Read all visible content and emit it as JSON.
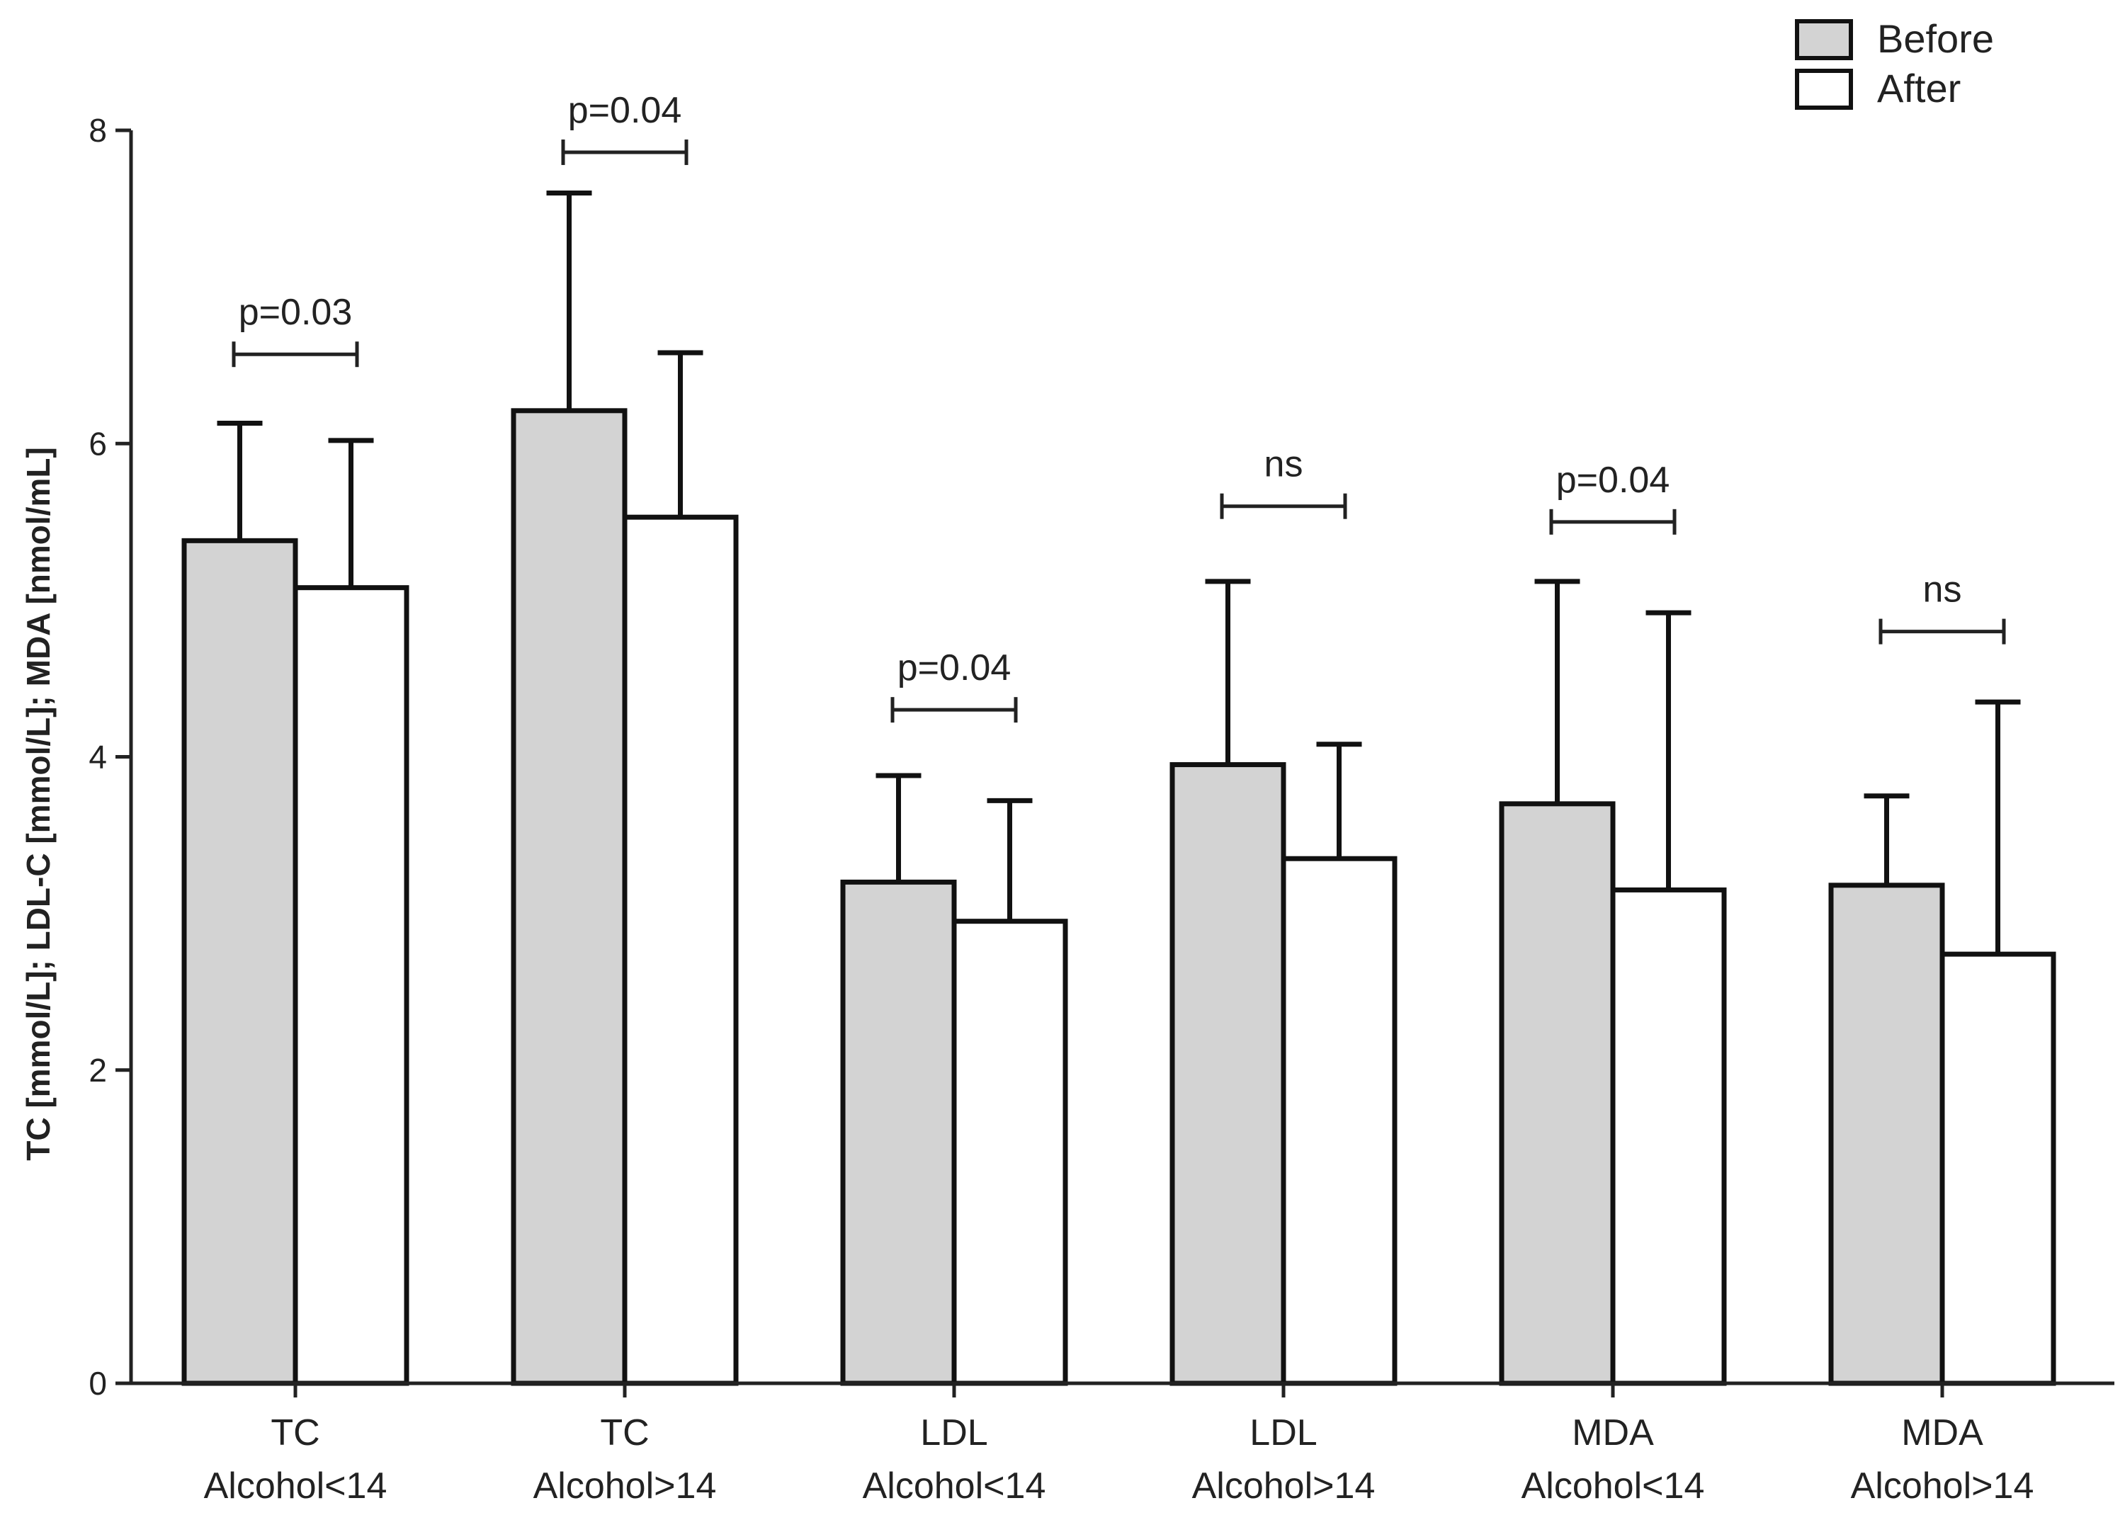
{
  "chart_data": {
    "type": "bar",
    "title": "",
    "xlabel": "",
    "ylabel": "TC [mmol/L]; LDL-C [mmol/L]; MDA [nmol/mL]",
    "ylim": [
      0,
      8
    ],
    "yticks": [
      0,
      2,
      4,
      6,
      8
    ],
    "grid": false,
    "legend_position": "top-right",
    "categories": [
      {
        "line1": "TC",
        "line2": "Alcohol<14"
      },
      {
        "line1": "TC",
        "line2": "Alcohol>14"
      },
      {
        "line1": "LDL",
        "line2": "Alcohol<14"
      },
      {
        "line1": "LDL",
        "line2": "Alcohol>14"
      },
      {
        "line1": "MDA",
        "line2": "Alcohol<14"
      },
      {
        "line1": "MDA",
        "line2": "Alcohol>14"
      }
    ],
    "series": [
      {
        "name": "Before",
        "color": "#d3d3d3",
        "values": [
          5.38,
          6.21,
          3.2,
          3.95,
          3.7,
          3.18
        ],
        "error_upper": [
          6.13,
          7.6,
          3.88,
          5.12,
          5.12,
          3.75
        ]
      },
      {
        "name": "After",
        "color": "#ffffff",
        "values": [
          5.08,
          5.53,
          2.95,
          3.35,
          3.15,
          2.74
        ],
        "error_upper": [
          6.02,
          6.58,
          3.72,
          4.08,
          4.92,
          4.35
        ]
      }
    ],
    "annotations": [
      {
        "category": 0,
        "text": "p=0.03",
        "y": 6.57
      },
      {
        "category": 1,
        "text": "p=0.04",
        "y": 7.86
      },
      {
        "category": 2,
        "text": "p=0.04",
        "y": 4.3
      },
      {
        "category": 3,
        "text": "ns",
        "y": 5.6
      },
      {
        "category": 4,
        "text": "p=0.04",
        "y": 5.5
      },
      {
        "category": 5,
        "text": "ns",
        "y": 4.8
      }
    ]
  }
}
